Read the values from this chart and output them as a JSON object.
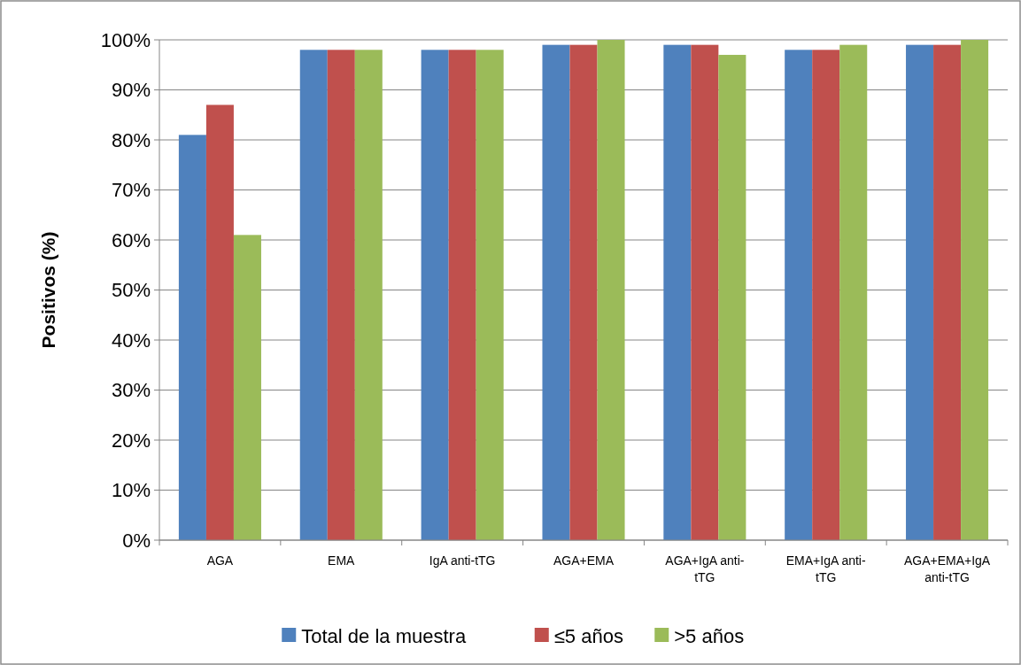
{
  "chart_data": {
    "type": "bar",
    "ylabel": "Positivos (%)",
    "categories": [
      "AGA",
      "EMA",
      "IgA anti-tTG",
      "AGA+EMA",
      "AGA+IgA anti-tTG",
      "EMA+IgA anti-tTG",
      "AGA+EMA+IgA anti-tTG"
    ],
    "series": [
      {
        "name": "Total de la muestra",
        "color": "#4f81bd",
        "values": [
          81,
          98,
          98,
          99,
          99,
          98,
          99
        ]
      },
      {
        "name": "≤5 años",
        "color": "#c0504d",
        "values": [
          87,
          98,
          98,
          99,
          99,
          98,
          99
        ]
      },
      {
        "name": ">5 años",
        "color": "#9bbb59",
        "values": [
          61,
          98,
          98,
          100,
          97,
          99,
          100
        ]
      }
    ],
    "ylim": [
      0,
      100
    ],
    "yticks": [
      {
        "value": 0,
        "label": "0%"
      },
      {
        "value": 10,
        "label": "10%"
      },
      {
        "value": 20,
        "label": "20%"
      },
      {
        "value": 30,
        "label": "30%"
      },
      {
        "value": 40,
        "label": "40%"
      },
      {
        "value": 50,
        "label": "50%"
      },
      {
        "value": 60,
        "label": "60%"
      },
      {
        "value": 70,
        "label": "70%"
      },
      {
        "value": 80,
        "label": "80%"
      },
      {
        "value": 90,
        "label": "90%"
      },
      {
        "value": 100,
        "label": "100%"
      }
    ],
    "grid": "y",
    "legend": "bottom"
  }
}
